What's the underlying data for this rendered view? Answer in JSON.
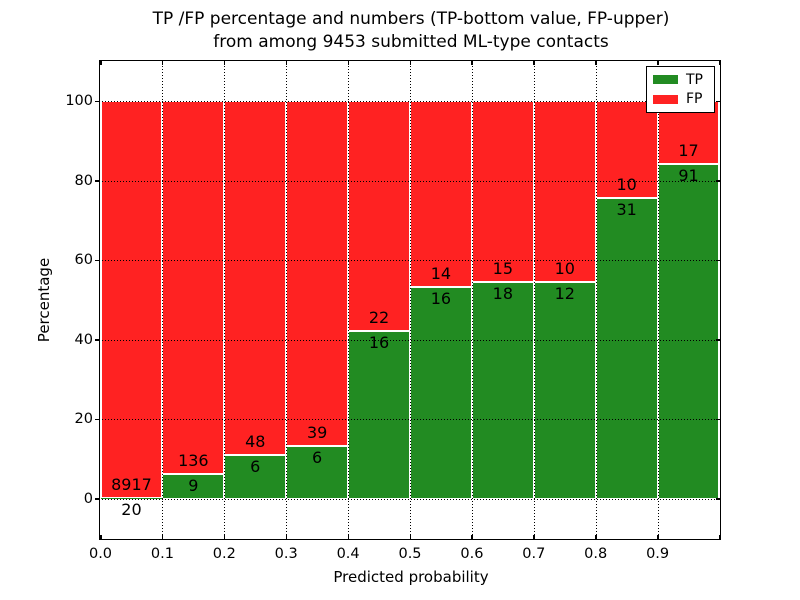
{
  "figure": {
    "title_line1": "TP /FP percentage and numbers (TP-bottom value, FP-upper)",
    "title_line2": "from among 9453 submitted ML-type contacts"
  },
  "chart_data": {
    "type": "bar",
    "stacked": true,
    "title": "TP /FP percentage and numbers (TP-bottom value, FP-upper) from among 9453 submitted ML-type contacts",
    "total_submitted_contacts": 9453,
    "xlabel": "Predicted probability",
    "ylabel": "Percentage",
    "xlim": [
      0.0,
      1.0
    ],
    "ylim": [
      -10,
      110
    ],
    "bin_width": 0.1,
    "bin_starts": [
      0.0,
      0.1,
      0.2,
      0.3,
      0.4,
      0.5,
      0.6,
      0.7,
      0.8,
      0.9
    ],
    "xtick_labels": [
      "0.0",
      "0.1",
      "0.2",
      "0.3",
      "0.4",
      "0.5",
      "0.6",
      "0.7",
      "0.8",
      "0.9"
    ],
    "ytick_values": [
      0,
      20,
      40,
      60,
      80,
      100
    ],
    "grid": {
      "style": "dotted",
      "color": "#000000"
    },
    "series": [
      {
        "name": "TP",
        "color": "#228b22",
        "counts": [
          20,
          9,
          6,
          6,
          16,
          16,
          18,
          12,
          31,
          91
        ],
        "percent_of_bin": [
          0.22,
          6.21,
          11.11,
          13.33,
          42.11,
          53.33,
          54.55,
          54.55,
          75.61,
          84.26
        ]
      },
      {
        "name": "FP",
        "color": "#ff2222",
        "counts": [
          8917,
          136,
          48,
          39,
          22,
          14,
          15,
          10,
          10,
          17
        ],
        "percent_of_bin": [
          99.78,
          93.79,
          88.89,
          86.67,
          57.89,
          46.67,
          45.45,
          45.45,
          24.39,
          15.74
        ]
      }
    ],
    "legend": {
      "position": "upper right",
      "entries": [
        {
          "label": "TP",
          "color": "#228b22"
        },
        {
          "label": "FP",
          "color": "#ff2222"
        }
      ]
    }
  }
}
